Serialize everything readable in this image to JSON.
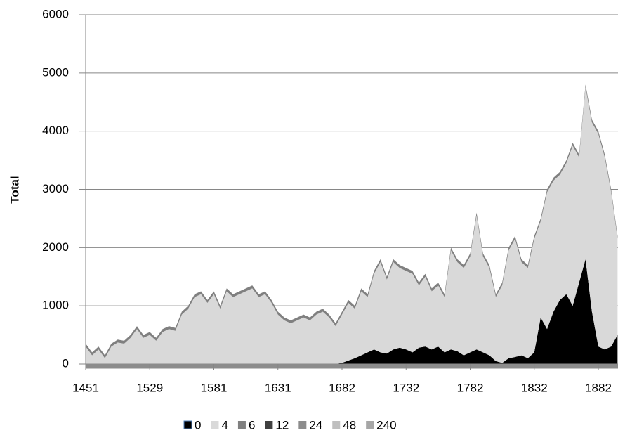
{
  "chart_data": {
    "type": "stacked_area",
    "y_label": "Total",
    "categories": [
      "1451",
      null,
      null,
      null,
      null,
      null,
      null,
      null,
      null,
      null,
      "1529",
      null,
      null,
      null,
      null,
      null,
      null,
      null,
      null,
      null,
      "1581",
      null,
      null,
      null,
      null,
      null,
      null,
      null,
      null,
      null,
      "1631",
      null,
      null,
      null,
      null,
      null,
      null,
      null,
      null,
      null,
      "1682",
      null,
      null,
      null,
      null,
      null,
      null,
      null,
      null,
      null,
      "1732",
      null,
      null,
      null,
      null,
      null,
      null,
      null,
      null,
      null,
      "1782",
      null,
      null,
      null,
      null,
      null,
      null,
      null,
      null,
      null,
      "1832",
      null,
      null,
      null,
      null,
      null,
      null,
      null,
      null,
      null,
      "1882",
      null,
      null,
      null
    ],
    "series": [
      {
        "name": "0",
        "color": "#000000",
        "values": [
          0,
          0,
          0,
          0,
          0,
          0,
          0,
          0,
          0,
          0,
          0,
          0,
          0,
          0,
          0,
          0,
          0,
          0,
          0,
          0,
          0,
          0,
          0,
          0,
          0,
          0,
          0,
          0,
          0,
          0,
          0,
          0,
          0,
          0,
          0,
          0,
          0,
          0,
          0,
          0,
          20,
          60,
          100,
          150,
          200,
          250,
          200,
          180,
          250,
          280,
          250,
          200,
          280,
          300,
          250,
          300,
          200,
          250,
          220,
          150,
          200,
          250,
          200,
          150,
          50,
          20,
          100,
          120,
          150,
          100,
          200,
          800,
          600,
          900,
          1100,
          1200,
          1000,
          1400,
          1800,
          900,
          300,
          250,
          300,
          500
        ]
      },
      {
        "name": "4",
        "color": "#d9d9d9",
        "values": [
          300,
          150,
          250,
          100,
          300,
          370,
          350,
          450,
          600,
          450,
          500,
          400,
          550,
          600,
          570,
          850,
          950,
          1150,
          1200,
          1050,
          1200,
          950,
          1250,
          1150,
          1200,
          1250,
          1300,
          1150,
          1200,
          1050,
          850,
          750,
          700,
          750,
          800,
          750,
          850,
          900,
          800,
          650,
          830,
          990,
          850,
          1100,
          950,
          1300,
          1550,
          1270,
          1500,
          1370,
          1350,
          1350,
          1070,
          1200,
          1000,
          1050,
          950,
          1700,
          1530,
          1500,
          1650,
          2300,
          1650,
          1500,
          1100,
          1330,
          1850,
          2030,
          1600,
          1550,
          1950,
          1650,
          2350,
          2250,
          2150,
          2250,
          2750,
          2150,
          2950,
          3250,
          3650,
          3300,
          2650,
          1650
        ]
      },
      {
        "name": "6",
        "color": "#808080",
        "values": [
          50,
          50,
          50,
          50,
          50,
          50,
          50,
          50,
          50,
          50,
          50,
          50,
          50,
          50,
          50,
          50,
          50,
          50,
          50,
          50,
          50,
          50,
          50,
          50,
          50,
          50,
          50,
          50,
          50,
          50,
          50,
          50,
          50,
          50,
          50,
          50,
          50,
          50,
          50,
          50,
          50,
          50,
          50,
          50,
          50,
          50,
          50,
          50,
          50,
          50,
          50,
          50,
          50,
          50,
          50,
          50,
          50,
          50,
          50,
          50,
          50,
          50,
          50,
          50,
          50,
          50,
          50,
          50,
          50,
          50,
          50,
          50,
          50,
          50,
          50,
          50,
          50,
          50,
          50,
          50,
          50,
          50,
          50,
          50
        ]
      },
      {
        "name": "12",
        "color": "#404040",
        "values": [
          0,
          0,
          0,
          0,
          0,
          0,
          0,
          0,
          0,
          0,
          0,
          0,
          0,
          0,
          0,
          0,
          0,
          0,
          0,
          0,
          0,
          0,
          0,
          0,
          0,
          0,
          0,
          0,
          0,
          0,
          0,
          0,
          0,
          0,
          0,
          0,
          0,
          0,
          0,
          0,
          0,
          0,
          0,
          0,
          0,
          0,
          0,
          0,
          0,
          0,
          0,
          0,
          0,
          0,
          0,
          0,
          0,
          0,
          0,
          0,
          0,
          0,
          0,
          0,
          0,
          0,
          0,
          0,
          0,
          0,
          0,
          0,
          0,
          0,
          0,
          0,
          0,
          0,
          0,
          0,
          0,
          0,
          0,
          0
        ]
      },
      {
        "name": "24",
        "color": "#8c8c8c",
        "values": [
          0,
          0,
          0,
          0,
          0,
          0,
          0,
          0,
          0,
          0,
          0,
          0,
          0,
          0,
          0,
          0,
          0,
          0,
          0,
          0,
          0,
          0,
          0,
          0,
          0,
          0,
          0,
          0,
          0,
          0,
          0,
          0,
          0,
          0,
          0,
          0,
          0,
          0,
          0,
          0,
          0,
          0,
          0,
          0,
          0,
          0,
          0,
          0,
          0,
          0,
          0,
          0,
          0,
          0,
          0,
          0,
          0,
          0,
          0,
          0,
          0,
          0,
          0,
          0,
          0,
          0,
          0,
          0,
          0,
          0,
          0,
          0,
          0,
          0,
          0,
          0,
          0,
          0,
          0,
          0,
          0,
          0,
          0,
          0
        ]
      },
      {
        "name": "48",
        "color": "#bfbfbf",
        "values": [
          0,
          0,
          0,
          0,
          0,
          0,
          0,
          0,
          0,
          0,
          0,
          0,
          0,
          0,
          0,
          0,
          0,
          0,
          0,
          0,
          0,
          0,
          0,
          0,
          0,
          0,
          0,
          0,
          0,
          0,
          0,
          0,
          0,
          0,
          0,
          0,
          0,
          0,
          0,
          0,
          0,
          0,
          0,
          0,
          0,
          0,
          0,
          0,
          0,
          0,
          0,
          0,
          0,
          0,
          0,
          0,
          0,
          0,
          0,
          0,
          0,
          0,
          0,
          0,
          0,
          0,
          0,
          0,
          0,
          0,
          0,
          0,
          0,
          0,
          0,
          0,
          0,
          0,
          0,
          0,
          0,
          0,
          0,
          0
        ]
      },
      {
        "name": "240",
        "color": "#a6a6a6",
        "values": [
          0,
          0,
          0,
          0,
          0,
          0,
          0,
          0,
          0,
          0,
          0,
          0,
          0,
          0,
          0,
          0,
          0,
          0,
          0,
          0,
          0,
          0,
          0,
          0,
          0,
          0,
          0,
          0,
          0,
          0,
          0,
          0,
          0,
          0,
          0,
          0,
          0,
          0,
          0,
          0,
          0,
          0,
          0,
          0,
          0,
          0,
          0,
          0,
          0,
          0,
          0,
          0,
          0,
          0,
          0,
          0,
          0,
          0,
          0,
          0,
          0,
          0,
          0,
          0,
          0,
          0,
          0,
          0,
          0,
          0,
          0,
          0,
          0,
          0,
          0,
          0,
          0,
          0,
          0,
          0,
          0,
          0,
          0,
          0
        ]
      }
    ],
    "ylim": [
      0,
      6000
    ],
    "yticks": [
      0,
      1000,
      2000,
      3000,
      4000,
      5000,
      6000
    ],
    "grid": true,
    "legend": "bottom"
  }
}
